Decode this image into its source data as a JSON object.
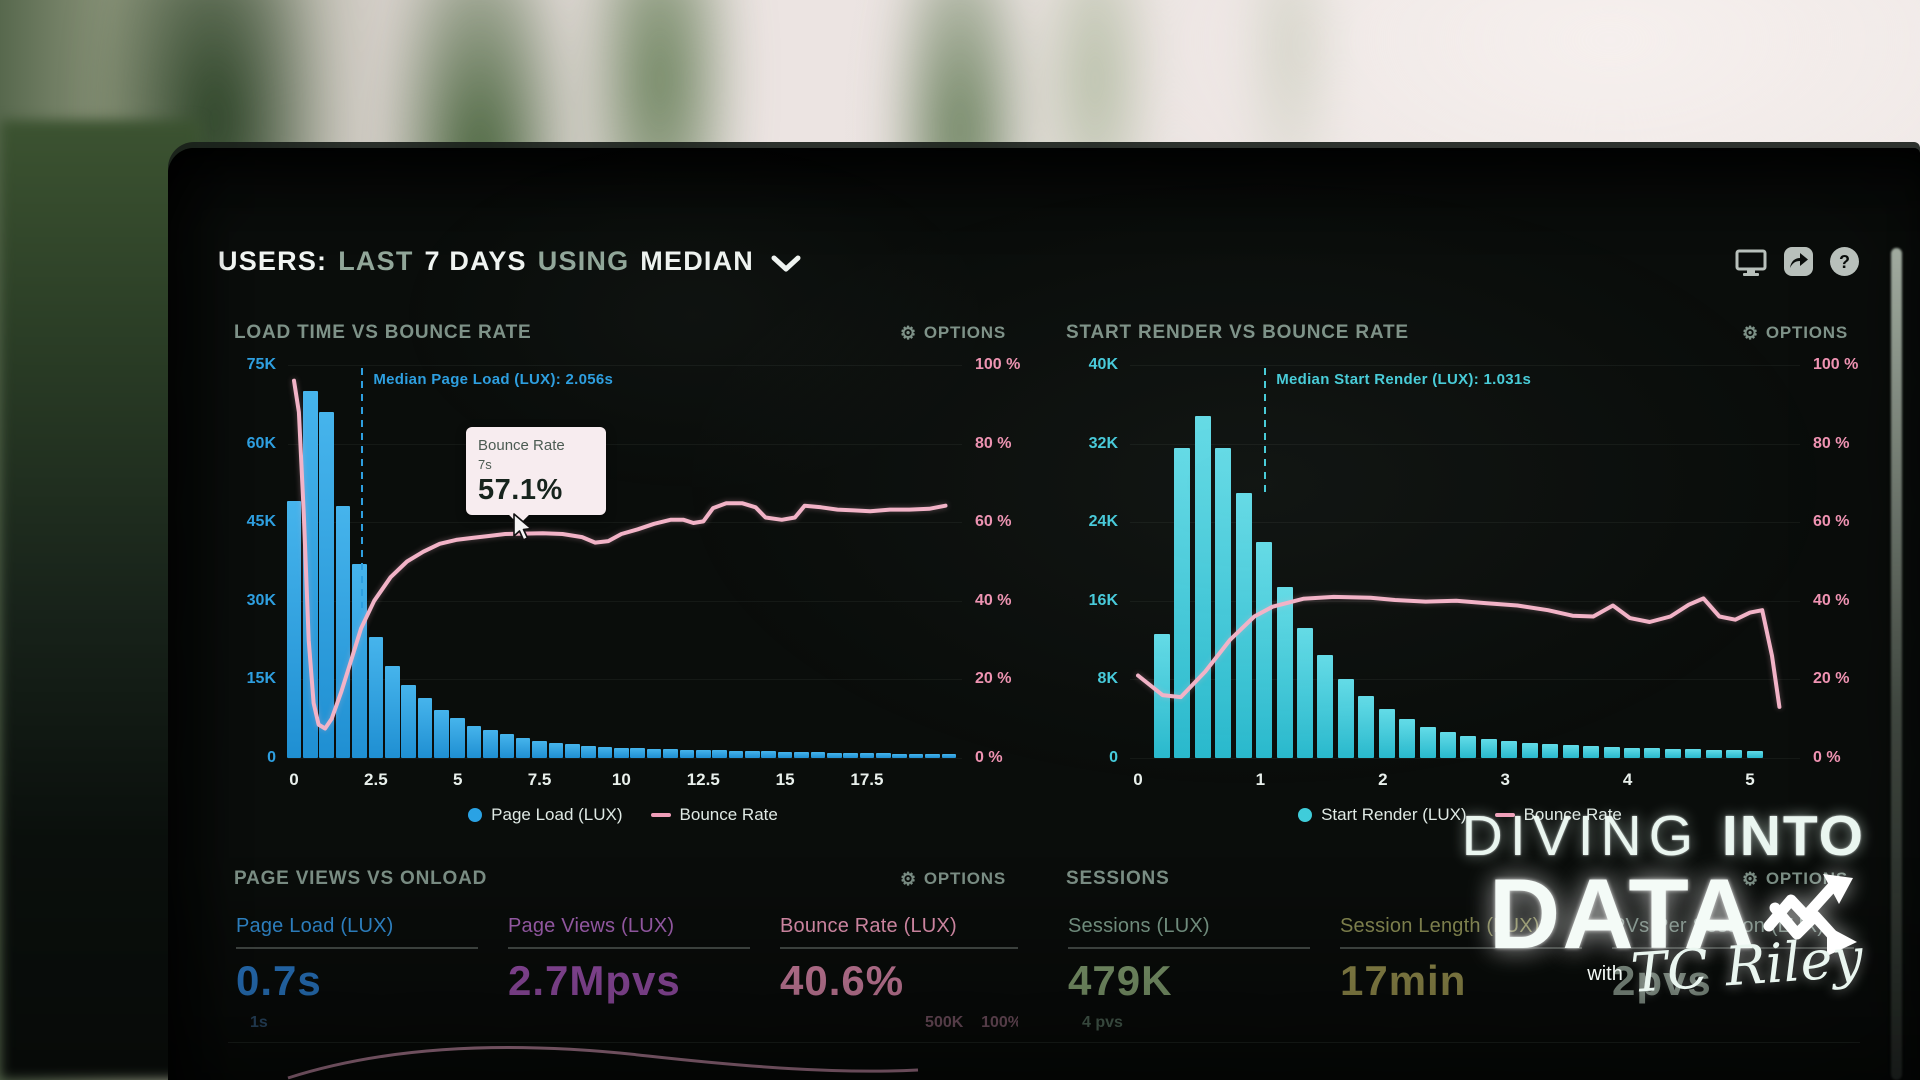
{
  "header": {
    "segments": [
      {
        "text": "USERS:",
        "tone": "bright"
      },
      {
        "text": "LAST",
        "tone": "muted"
      },
      {
        "text": "7 DAYS",
        "tone": "bright"
      },
      {
        "text": "USING",
        "tone": "muted"
      },
      {
        "text": "MEDIAN",
        "tone": "bright"
      }
    ],
    "icons": [
      "display-icon",
      "share-icon",
      "help-icon"
    ]
  },
  "tooltip": {
    "series": "Bounce Rate",
    "x_value": "7s",
    "value": "57.1%"
  },
  "watermark": {
    "line1_thin": "DIVING",
    "line1_bold": "INTO",
    "line2": "DATA",
    "with_label": "with",
    "author": "TC Riley"
  },
  "chart_data": [
    {
      "type": "bar",
      "title": "LOAD TIME VS BOUNCE RATE",
      "options_label": "OPTIONS",
      "bar_series": {
        "name": "Page Load (LUX)",
        "color_top": "#46b4ec",
        "color_bottom": "#1f8fd2",
        "legend_color": "#2aa2e4"
      },
      "line_series": {
        "name": "Bounce Rate",
        "color": "#f2b3c7",
        "legend_color": "#ef9db8"
      },
      "y_left": {
        "labels": [
          "75K",
          "60K",
          "45K",
          "30K",
          "15K",
          "0"
        ],
        "values": [
          75,
          60,
          45,
          30,
          15,
          0
        ],
        "max": 75,
        "color": "#2e9fe0"
      },
      "y_right": {
        "labels": [
          "100 %",
          "80 %",
          "60 %",
          "40 %",
          "20 %",
          "0 %"
        ],
        "values": [
          100,
          80,
          60,
          40,
          20,
          0
        ],
        "max": 100,
        "color": "#ef93b2"
      },
      "x_ticks": {
        "labels": [
          "0",
          "2.5",
          "5",
          "7.5",
          "10",
          "12.5",
          "15",
          "17.5"
        ],
        "values": [
          0,
          2.5,
          5,
          7.5,
          10,
          12.5,
          15,
          17.5
        ]
      },
      "median": {
        "label": "Median Page Load (LUX): 2.056s",
        "value": 2.056,
        "color": "#2e9fe0"
      },
      "bars": {
        "start": 0,
        "step": 0.5,
        "unit": "K",
        "values": [
          49,
          70,
          66,
          48,
          37,
          23,
          17.5,
          14,
          11.5,
          9.2,
          7.6,
          6.2,
          5.3,
          4.6,
          3.9,
          3.3,
          2.9,
          2.6,
          2.35,
          2.15,
          2.0,
          1.9,
          1.8,
          1.7,
          1.6,
          1.52,
          1.45,
          1.38,
          1.32,
          1.26,
          1.2,
          1.15,
          1.1,
          1.05,
          1.0,
          0.95,
          0.9,
          0.86,
          0.82,
          0.78,
          0.74
        ]
      },
      "line_points": [
        [
          0,
          96
        ],
        [
          0.15,
          88
        ],
        [
          0.3,
          62
        ],
        [
          0.45,
          30
        ],
        [
          0.6,
          14
        ],
        [
          0.75,
          8.5
        ],
        [
          0.95,
          7.5
        ],
        [
          1.15,
          10
        ],
        [
          1.45,
          17
        ],
        [
          1.75,
          25
        ],
        [
          2.05,
          33
        ],
        [
          2.45,
          40
        ],
        [
          2.95,
          46
        ],
        [
          3.45,
          50
        ],
        [
          3.95,
          52.5
        ],
        [
          4.45,
          54.5
        ],
        [
          4.95,
          55.5
        ],
        [
          5.45,
          56
        ],
        [
          5.95,
          56.5
        ],
        [
          6.45,
          57
        ],
        [
          7.0,
          57.1
        ],
        [
          7.6,
          57.2
        ],
        [
          8.2,
          57
        ],
        [
          8.8,
          56.2
        ],
        [
          9.2,
          54.8
        ],
        [
          9.6,
          55.2
        ],
        [
          10.0,
          57
        ],
        [
          10.5,
          58.2
        ],
        [
          11.0,
          59.6
        ],
        [
          11.5,
          60.6
        ],
        [
          11.9,
          60.6
        ],
        [
          12.2,
          59.8
        ],
        [
          12.5,
          60.2
        ],
        [
          12.8,
          63.6
        ],
        [
          13.2,
          64.8
        ],
        [
          13.7,
          64.8
        ],
        [
          14.1,
          63.8
        ],
        [
          14.4,
          61.2
        ],
        [
          14.9,
          60.6
        ],
        [
          15.3,
          61.2
        ],
        [
          15.6,
          64.2
        ],
        [
          16.1,
          63.8
        ],
        [
          16.6,
          63.2
        ],
        [
          17.1,
          63
        ],
        [
          17.6,
          62.8
        ],
        [
          18.2,
          63.2
        ],
        [
          18.8,
          63.2
        ],
        [
          19.4,
          63.4
        ],
        [
          19.9,
          64.2
        ]
      ]
    },
    {
      "type": "bar",
      "title": "START RENDER VS BOUNCE RATE",
      "options_label": "OPTIONS",
      "bar_series": {
        "name": "Start Render (LUX)",
        "color_top": "#63dce8",
        "color_bottom": "#29b9cd",
        "legend_color": "#3fccda"
      },
      "line_series": {
        "name": "Bounce Rate",
        "color": "#f2b3c7",
        "legend_color": "#ef9db8"
      },
      "y_left": {
        "labels": [
          "40K",
          "32K",
          "24K",
          "16K",
          "8K",
          "0"
        ],
        "values": [
          40,
          32,
          24,
          16,
          8,
          0
        ],
        "max": 40,
        "color": "#46cbdb"
      },
      "y_right": {
        "labels": [
          "100 %",
          "80 %",
          "60 %",
          "40 %",
          "20 %",
          "0 %"
        ],
        "values": [
          100,
          80,
          60,
          40,
          20,
          0
        ],
        "max": 100,
        "color": "#ef93b2"
      },
      "x_ticks": {
        "labels": [
          "0",
          "1",
          "2",
          "3",
          "4",
          "5"
        ],
        "values": [
          0,
          1,
          2,
          3,
          4,
          5
        ]
      },
      "median": {
        "label": "Median Start Render (LUX): 1.031s",
        "value": 1.031,
        "color": "#49ccd8"
      },
      "bars": {
        "start": 0.195,
        "step": 0.167,
        "unit": "K",
        "values": [
          12.6,
          31.6,
          34.8,
          31.6,
          27,
          22,
          17.4,
          13.2,
          10.5,
          8.0,
          6.3,
          5.0,
          4.0,
          3.2,
          2.6,
          2.2,
          1.9,
          1.7,
          1.55,
          1.4,
          1.3,
          1.2,
          1.1,
          1.05,
          1.0,
          0.95,
          0.9,
          0.85,
          0.8,
          0.75
        ]
      },
      "line_points": [
        [
          0,
          21
        ],
        [
          0.2,
          16
        ],
        [
          0.35,
          15.5
        ],
        [
          0.55,
          22
        ],
        [
          0.75,
          30
        ],
        [
          0.95,
          36
        ],
        [
          1.1,
          38.5
        ],
        [
          1.35,
          40.5
        ],
        [
          1.6,
          41
        ],
        [
          1.9,
          40.8
        ],
        [
          2.1,
          40.2
        ],
        [
          2.35,
          39.8
        ],
        [
          2.6,
          40
        ],
        [
          2.85,
          39.4
        ],
        [
          3.1,
          38.8
        ],
        [
          3.35,
          37.6
        ],
        [
          3.55,
          36.2
        ],
        [
          3.72,
          36
        ],
        [
          3.88,
          38.8
        ],
        [
          4.02,
          35.6
        ],
        [
          4.18,
          34.6
        ],
        [
          4.35,
          36
        ],
        [
          4.5,
          39
        ],
        [
          4.62,
          40.6
        ],
        [
          4.75,
          36
        ],
        [
          4.88,
          35.2
        ],
        [
          5.0,
          37
        ],
        [
          5.1,
          37.6
        ],
        [
          5.18,
          26
        ],
        [
          5.24,
          13
        ]
      ]
    }
  ],
  "metric_panels": [
    {
      "title": "PAGE VIEWS VS ONLOAD",
      "options_label": "OPTIONS",
      "metrics": [
        {
          "label": "Page Load (LUX)",
          "value": "0.7s",
          "sub_left": "1s",
          "label_color": "#3390d8",
          "value_color": "#2b7ccb",
          "sub_color": "#2e4f6e"
        },
        {
          "label": "Page Views (LUX)",
          "value": "2.7Mpvs",
          "label_color": "#a563b6",
          "value_color": "#9b51ad",
          "sub_color": "#5a4a62"
        },
        {
          "label": "Bounce Rate (LUX)",
          "value": "40.6%",
          "sub_right": "500K    100%",
          "label_color": "#e897b6",
          "value_color": "#d584a6",
          "sub_color": "#7a5767"
        }
      ]
    },
    {
      "title": "SESSIONS",
      "options_label": "OPTIONS",
      "metrics": [
        {
          "label": "Sessions (LUX)",
          "value": "479K",
          "sub_left": "4 pvs",
          "label_color": "#7fa08e",
          "value_color": "#85a273",
          "sub_color": "#4e6657"
        },
        {
          "label": "Session Length (LUX)",
          "value": "17min",
          "label_color": "#8e9157",
          "value_color": "#98924f",
          "sub_color": "#5a5c3f"
        },
        {
          "label": "PVs Per Session (LUX)",
          "value": "2pvs",
          "label_color": "#7e948a",
          "value_color": "#8a9a8e",
          "sub_color": "#55655c"
        }
      ]
    }
  ]
}
